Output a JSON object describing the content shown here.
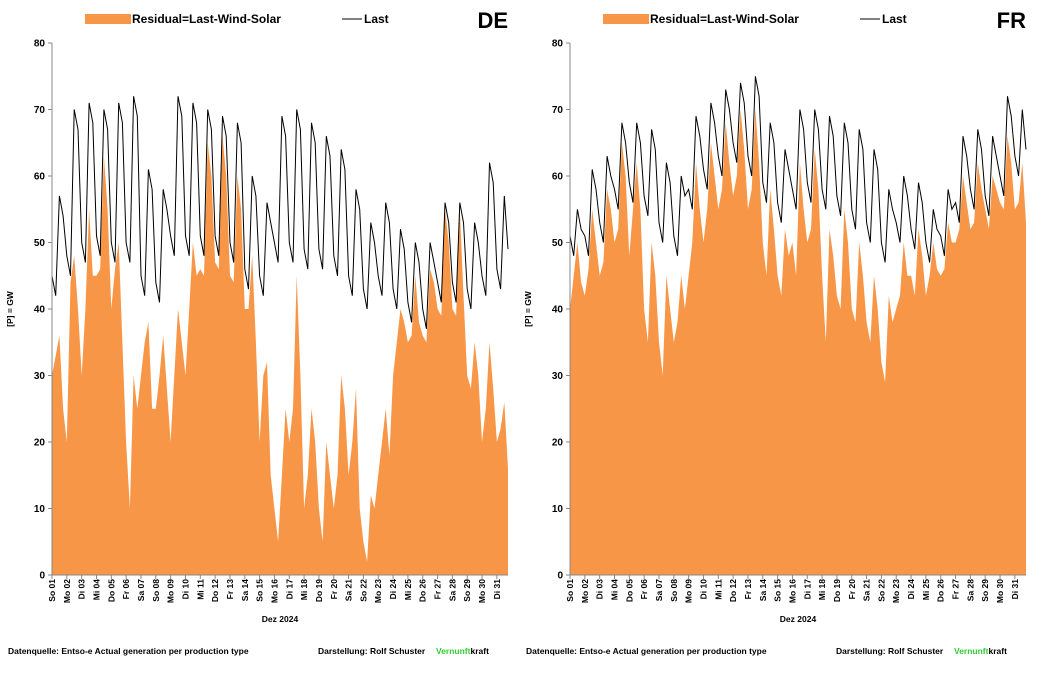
{
  "charts": [
    {
      "type": "area_line",
      "title": "DE",
      "xlabel": "Dez 2024",
      "ylabel": "[P] = GW",
      "ylim": [
        0,
        80
      ],
      "yticks": [
        0,
        10,
        20,
        30,
        40,
        50,
        60,
        70,
        80
      ],
      "categories": [
        "So 01",
        null,
        null,
        null,
        "Mo 02",
        null,
        null,
        null,
        "Di 03",
        null,
        null,
        null,
        "Mi 04",
        null,
        null,
        null,
        "Do 05",
        null,
        null,
        null,
        "Fr 06",
        null,
        null,
        null,
        "Sa 07",
        null,
        null,
        null,
        "So 08",
        null,
        null,
        null,
        "Mo 09",
        null,
        null,
        null,
        "Di 10",
        null,
        null,
        null,
        "Mi 11",
        null,
        null,
        null,
        "Do 12",
        null,
        null,
        null,
        "Fr 13",
        null,
        null,
        null,
        "Sa 14",
        null,
        null,
        null,
        "So 15",
        null,
        null,
        null,
        "Mo 16",
        null,
        null,
        null,
        "Di 17",
        null,
        null,
        null,
        "Mi 18",
        null,
        null,
        null,
        "Do 19",
        null,
        null,
        null,
        "Fr 20",
        null,
        null,
        null,
        "Sa 21",
        null,
        null,
        null,
        "So 22",
        null,
        null,
        null,
        "Mo 23",
        null,
        null,
        null,
        "Di 24",
        null,
        null,
        null,
        "Mi 25",
        null,
        null,
        null,
        "Do 26",
        null,
        null,
        null,
        "Fr 27",
        null,
        null,
        null,
        "Sa 28",
        null,
        null,
        null,
        "So 29",
        null,
        null,
        null,
        "Mo 30",
        null,
        null,
        null,
        "Di 31",
        null,
        null,
        null
      ],
      "series": [
        {
          "name": "Residual=Last-Wind-Solar",
          "color": "#f79646",
          "kind": "area",
          "values": [
            30,
            33,
            36,
            25,
            20,
            44,
            48,
            40,
            30,
            40,
            55,
            45,
            45,
            46,
            63,
            55,
            40,
            46,
            50,
            35,
            20,
            10,
            30,
            25,
            30,
            35,
            38,
            25,
            25,
            30,
            36,
            28,
            20,
            30,
            40,
            35,
            30,
            40,
            50,
            45,
            46,
            45,
            65,
            60,
            47,
            46,
            66,
            60,
            45,
            44,
            60,
            55,
            40,
            40,
            48,
            35,
            20,
            30,
            32,
            15,
            10,
            5,
            15,
            25,
            20,
            25,
            45,
            30,
            10,
            15,
            25,
            20,
            10,
            5,
            20,
            15,
            10,
            15,
            30,
            25,
            15,
            20,
            28,
            10,
            5,
            2,
            12,
            10,
            15,
            20,
            25,
            18,
            30,
            35,
            40,
            38,
            35,
            36,
            45,
            38,
            36,
            35,
            46,
            44,
            40,
            39,
            55,
            50,
            40,
            39,
            55,
            42,
            30,
            28,
            35,
            30,
            20,
            25,
            35,
            28,
            20,
            22,
            26,
            16
          ]
        },
        {
          "name": "Last",
          "color": "#000000",
          "kind": "line",
          "values": [
            45,
            42,
            57,
            54,
            48,
            45,
            70,
            67,
            50,
            47,
            71,
            68,
            51,
            48,
            70,
            67,
            50,
            47,
            71,
            68,
            50,
            47,
            72,
            69,
            45,
            42,
            61,
            58,
            44,
            41,
            58,
            55,
            51,
            48,
            72,
            69,
            51,
            48,
            71,
            68,
            51,
            48,
            70,
            67,
            51,
            48,
            69,
            66,
            50,
            47,
            68,
            65,
            46,
            43,
            60,
            57,
            45,
            42,
            56,
            53,
            50,
            47,
            69,
            66,
            50,
            47,
            70,
            67,
            49,
            46,
            68,
            65,
            49,
            46,
            66,
            63,
            48,
            45,
            64,
            61,
            45,
            42,
            58,
            55,
            43,
            40,
            53,
            50,
            45,
            42,
            56,
            53,
            43,
            40,
            52,
            49,
            41,
            38,
            50,
            47,
            40,
            37,
            50,
            47,
            44,
            41,
            56,
            53,
            44,
            41,
            56,
            53,
            43,
            40,
            53,
            50,
            45,
            42,
            62,
            59,
            46,
            43,
            57,
            49
          ]
        }
      ],
      "source": "Datenquelle: Entso-e Actual generation per production type",
      "credit": "Darstellung: Rolf Schuster",
      "brand": [
        "Vernunft",
        "kraft"
      ],
      "brand_colors": [
        "#33cc33",
        "#000000"
      ]
    },
    {
      "type": "area_line",
      "title": "FR",
      "xlabel": "Dez 2024",
      "ylabel": "[P] = GW",
      "ylim": [
        0,
        80
      ],
      "yticks": [
        0,
        10,
        20,
        30,
        40,
        50,
        60,
        70,
        80
      ],
      "categories": [
        "So 01",
        null,
        null,
        null,
        "Mo 02",
        null,
        null,
        null,
        "Di 03",
        null,
        null,
        null,
        "Mi 04",
        null,
        null,
        null,
        "Do 05",
        null,
        null,
        null,
        "Fr 06",
        null,
        null,
        null,
        "Sa 07",
        null,
        null,
        null,
        "So 08",
        null,
        null,
        null,
        "Mo 09",
        null,
        null,
        null,
        "Di 10",
        null,
        null,
        null,
        "Mi 11",
        null,
        null,
        null,
        "Do 12",
        null,
        null,
        null,
        "Fr 13",
        null,
        null,
        null,
        "Sa 14",
        null,
        null,
        null,
        "So 15",
        null,
        null,
        null,
        "Mo 16",
        null,
        null,
        null,
        "Di 17",
        null,
        null,
        null,
        "Mi 18",
        null,
        null,
        null,
        "Do 19",
        null,
        null,
        null,
        "Fr 20",
        null,
        null,
        null,
        "Sa 21",
        null,
        null,
        null,
        "So 22",
        null,
        null,
        null,
        "Mo 23",
        null,
        null,
        null,
        "Di 24",
        null,
        null,
        null,
        "Mi 25",
        null,
        null,
        null,
        "Do 26",
        null,
        null,
        null,
        "Fr 27",
        null,
        null,
        null,
        "Sa 28",
        null,
        null,
        null,
        "So 29",
        null,
        null,
        null,
        "Mo 30",
        null,
        null,
        null,
        "Di 31",
        null,
        null,
        null
      ],
      "series": [
        {
          "name": "Residual=Last-Wind-Solar",
          "color": "#f79646",
          "kind": "area",
          "values": [
            40,
            45,
            50,
            44,
            42,
            46,
            55,
            50,
            45,
            47,
            58,
            55,
            50,
            52,
            65,
            60,
            48,
            55,
            62,
            55,
            40,
            35,
            50,
            45,
            35,
            30,
            45,
            40,
            35,
            38,
            45,
            40,
            45,
            50,
            62,
            55,
            50,
            55,
            65,
            60,
            55,
            58,
            68,
            62,
            57,
            60,
            70,
            64,
            55,
            58,
            70,
            62,
            50,
            45,
            58,
            52,
            45,
            42,
            52,
            48,
            50,
            45,
            62,
            55,
            50,
            52,
            64,
            58,
            45,
            35,
            52,
            48,
            42,
            40,
            55,
            50,
            40,
            38,
            50,
            45,
            38,
            35,
            45,
            40,
            32,
            29,
            42,
            38,
            40,
            42,
            50,
            45,
            45,
            42,
            52,
            48,
            42,
            45,
            50,
            46,
            45,
            46,
            53,
            50,
            50,
            52,
            60,
            56,
            52,
            53,
            62,
            58,
            55,
            52,
            60,
            58,
            56,
            55,
            66,
            62,
            55,
            56,
            62,
            53
          ]
        },
        {
          "name": "Last",
          "color": "#000000",
          "kind": "line",
          "values": [
            51,
            48,
            55,
            52,
            51,
            48,
            61,
            58,
            53,
            50,
            63,
            60,
            58,
            55,
            68,
            65,
            59,
            56,
            68,
            65,
            57,
            54,
            67,
            64,
            53,
            50,
            62,
            59,
            51,
            48,
            60,
            57,
            58,
            55,
            69,
            66,
            61,
            58,
            71,
            68,
            63,
            60,
            73,
            70,
            65,
            62,
            74,
            71,
            63,
            60,
            75,
            72,
            59,
            56,
            68,
            65,
            56,
            53,
            64,
            61,
            58,
            55,
            70,
            67,
            59,
            56,
            70,
            67,
            58,
            55,
            69,
            66,
            57,
            54,
            68,
            65,
            55,
            52,
            67,
            64,
            53,
            50,
            64,
            61,
            50,
            47,
            58,
            55,
            53,
            50,
            60,
            57,
            52,
            49,
            59,
            56,
            50,
            47,
            55,
            52,
            51,
            48,
            58,
            55,
            56,
            53,
            66,
            63,
            58,
            55,
            67,
            64,
            57,
            54,
            66,
            63,
            60,
            57,
            72,
            69,
            63,
            60,
            70,
            64
          ]
        }
      ],
      "source": "Datenquelle: Entso-e Actual generation per production type",
      "credit": "Darstellung: Rolf Schuster",
      "brand": [
        "Vernunft",
        "kraft"
      ],
      "brand_colors": [
        "#33cc33",
        "#000000"
      ]
    }
  ]
}
